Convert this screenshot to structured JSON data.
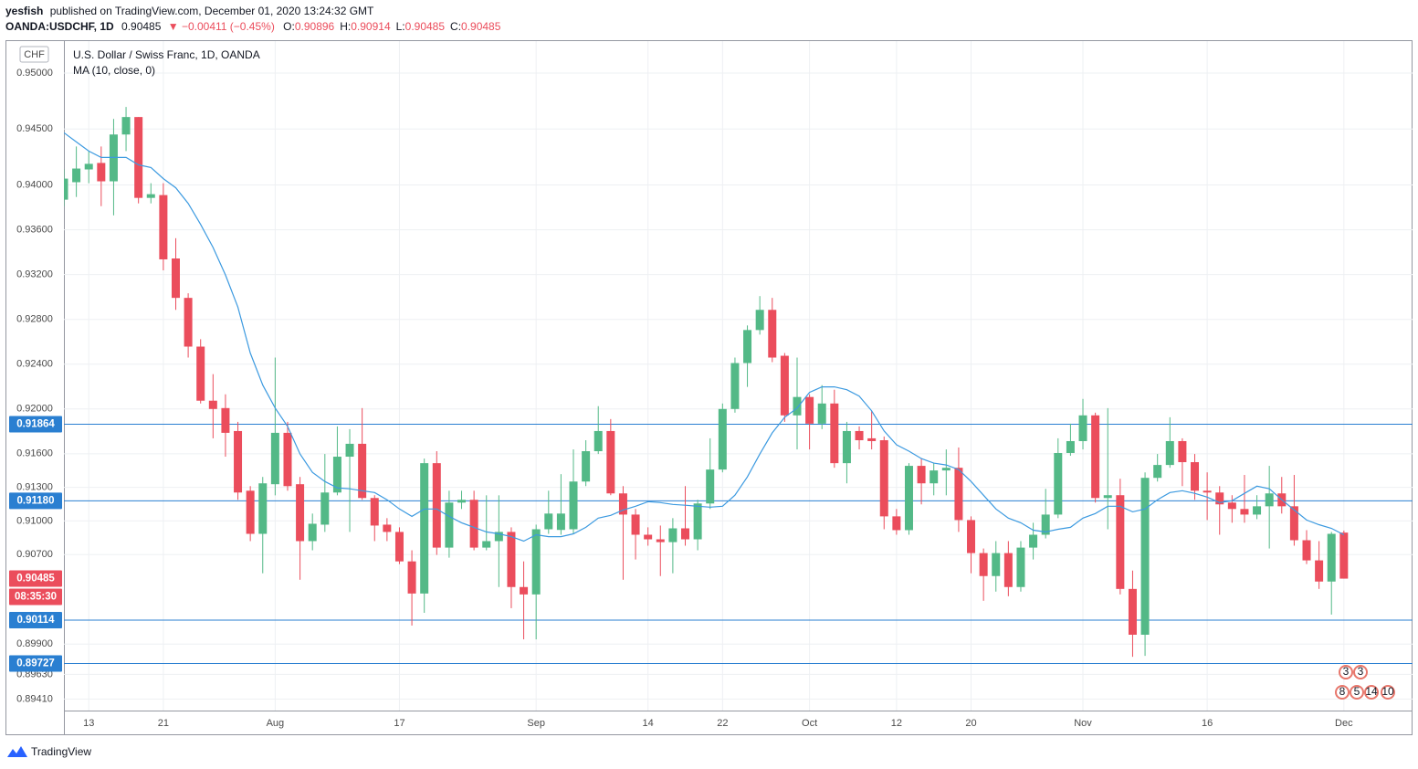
{
  "header": {
    "author": "yesfish",
    "published": "published on TradingView.com, December 01, 2020 13:24:32 GMT",
    "symbol": "OANDA:USDCHF, 1D",
    "price": "0.90485",
    "change": "▼ −0.00411 (−0.45%)",
    "ohlc": [
      {
        "label": "O:",
        "value": "0.90896"
      },
      {
        "label": "H:",
        "value": "0.90914"
      },
      {
        "label": "L:",
        "value": "0.90485"
      },
      {
        "label": "C:",
        "value": "0.90485"
      }
    ]
  },
  "footer": {
    "brand": "TradingView"
  },
  "chart_data": {
    "type": "candlestick",
    "title": "U.S. Dollar / Swiss Franc, 1D, OANDA",
    "currency": "CHF",
    "categories": [
      null,
      null,
      "13",
      null,
      null,
      null,
      null,
      null,
      "21",
      null,
      null,
      null,
      null,
      null,
      null,
      null,
      null,
      "Aug",
      null,
      null,
      null,
      null,
      null,
      null,
      null,
      null,
      null,
      "17",
      null,
      null,
      null,
      null,
      null,
      null,
      null,
      null,
      null,
      null,
      "Sep",
      null,
      null,
      null,
      null,
      null,
      null,
      null,
      null,
      "14",
      null,
      null,
      null,
      null,
      null,
      "22",
      null,
      null,
      null,
      null,
      null,
      null,
      "Oct",
      null,
      null,
      null,
      null,
      null,
      null,
      "12",
      null,
      null,
      null,
      null,
      null,
      "20",
      null,
      null,
      null,
      null,
      null,
      null,
      null,
      null,
      "Nov",
      null,
      null,
      null,
      null,
      null,
      null,
      null,
      null,
      null,
      "16",
      null,
      null,
      null,
      null,
      null,
      null,
      null,
      null,
      null,
      null,
      "Dec"
    ],
    "open": [
      0.93869,
      0.94025,
      0.94139,
      0.94197,
      0.94033,
      0.94451,
      0.94607,
      0.93885,
      0.9391,
      0.93344,
      0.92992,
      0.92557,
      0.92074,
      0.92008,
      0.91803,
      0.9127,
      0.90885,
      0.91328,
      0.91787,
      0.91328,
      0.9082,
      0.90967,
      0.91254,
      0.91574,
      0.91689,
      0.91205,
      0.90967,
      0.90902,
      0.90639,
      0.90352,
      0.91516,
      0.90762,
      0.91164,
      0.91189,
      0.90762,
      0.9082,
      0.90902,
      0.9041,
      0.90344,
      0.90926,
      0.9092,
      0.90926,
      0.91352,
      0.91623,
      0.91803,
      0.91246,
      0.91057,
      0.90877,
      0.90836,
      0.90811,
      0.90934,
      0.90836,
      0.91156,
      0.91459,
      0.92,
      0.9241,
      0.92705,
      0.92885,
      0.92475,
      0.91943,
      0.92107,
      0.91869,
      0.92049,
      0.91516,
      0.91803,
      0.91738,
      0.91721,
      0.91041,
      0.90918,
      0.91492,
      0.91336,
      0.91451,
      0.91475,
      0.91008,
      0.90713,
      0.90508,
      0.90713,
      0.9041,
      0.90762,
      0.90877,
      0.91057,
      0.91607,
      0.91713,
      0.91943,
      0.91205,
      0.9123,
      0.90393,
      0.89984,
      0.91385,
      0.915,
      0.91713,
      0.91525,
      0.9127,
      0.91254,
      0.91164,
      0.91107,
      0.91057,
      0.91131,
      0.91246,
      0.91131,
      0.90828,
      0.90648,
      0.90459,
      0.90896
    ],
    "high": [
      0.94139,
      0.94344,
      0.94303,
      0.94344,
      0.9459,
      0.94697,
      0.94607,
      0.94016,
      0.94016,
      0.93525,
      0.93033,
      0.92623,
      0.92311,
      0.92131,
      0.91885,
      0.91311,
      0.91393,
      0.92459,
      0.91885,
      0.91393,
      0.91066,
      0.91598,
      0.91844,
      0.9182,
      0.92008,
      0.9123,
      0.91025,
      0.90943,
      0.90738,
      0.91557,
      0.91623,
      0.9127,
      0.9127,
      0.9127,
      0.91229,
      0.91229,
      0.90943,
      0.90639,
      0.90967,
      0.9127,
      0.91418,
      0.91639,
      0.91721,
      0.92025,
      0.9191,
      0.91311,
      0.91107,
      0.90943,
      0.90959,
      0.91025,
      0.91311,
      0.91189,
      0.91738,
      0.92049,
      0.92459,
      0.92746,
      0.93008,
      0.92992,
      0.925,
      0.92459,
      0.92131,
      0.92213,
      0.92172,
      0.91885,
      0.91844,
      0.91984,
      0.91754,
      0.91107,
      0.91516,
      0.91557,
      0.91516,
      0.91639,
      0.91656,
      0.91041,
      0.90754,
      0.9082,
      0.9082,
      0.9082,
      0.90984,
      0.91287,
      0.91738,
      0.91869,
      0.9209,
      0.91967,
      0.92008,
      0.91377,
      0.90557,
      0.91434,
      0.91598,
      0.91926,
      0.91738,
      0.91598,
      0.91434,
      0.91311,
      0.9123,
      0.91411,
      0.9123,
      0.91492,
      0.91393,
      0.91411,
      0.90918,
      0.9082,
      0.90902,
      0.90914
    ],
    "low": [
      0.93811,
      0.93893,
      0.94016,
      0.93811,
      0.93729,
      0.94303,
      0.93836,
      0.93836,
      0.93238,
      0.92885,
      0.92459,
      0.92049,
      0.91738,
      0.91574,
      0.91189,
      0.9082,
      0.90533,
      0.91229,
      0.9127,
      0.90475,
      0.90738,
      0.90902,
      0.91229,
      0.90902,
      0.91189,
      0.9082,
      0.9082,
      0.90615,
      0.90066,
      0.9018,
      0.90697,
      0.90672,
      0.91107,
      0.90738,
      0.90738,
      0.9041,
      0.90221,
      0.89943,
      0.89943,
      0.90885,
      0.90877,
      0.90885,
      0.91311,
      0.91598,
      0.9123,
      0.90475,
      0.90656,
      0.90779,
      0.90508,
      0.90533,
      0.90779,
      0.90738,
      0.91107,
      0.91434,
      0.91967,
      0.92197,
      0.92664,
      0.92418,
      0.91885,
      0.91639,
      0.91639,
      0.9182,
      0.91475,
      0.91336,
      0.91639,
      0.91639,
      0.90926,
      0.90877,
      0.90877,
      0.91148,
      0.91229,
      0.91229,
      0.90902,
      0.90533,
      0.90287,
      0.90369,
      0.90328,
      0.90369,
      0.90656,
      0.90844,
      0.91025,
      0.91582,
      0.91639,
      0.91164,
      0.90926,
      0.90344,
      0.89787,
      0.89795,
      0.91352,
      0.91475,
      0.91311,
      0.91189,
      0.91008,
      0.90877,
      0.90984,
      0.90984,
      0.91016,
      0.90754,
      0.91066,
      0.90779,
      0.90615,
      0.90393,
      0.90164,
      0.90485
    ],
    "close": [
      0.94057,
      0.94147,
      0.94189,
      0.94033,
      0.94451,
      0.94607,
      0.93885,
      0.93918,
      0.93336,
      0.92992,
      0.92557,
      0.92074,
      0.92,
      0.91787,
      0.91254,
      0.90885,
      0.91336,
      0.91787,
      0.91311,
      0.9082,
      0.90975,
      0.91254,
      0.91574,
      0.91689,
      0.91205,
      0.90959,
      0.90902,
      0.90639,
      0.90352,
      0.91516,
      0.90762,
      0.91164,
      0.91189,
      0.90762,
      0.9082,
      0.90902,
      0.9041,
      0.90344,
      0.90926,
      0.91066,
      0.91066,
      0.91352,
      0.91623,
      0.91803,
      0.91246,
      0.91057,
      0.90877,
      0.90836,
      0.90811,
      0.90934,
      0.90836,
      0.91156,
      0.91459,
      0.92,
      0.9241,
      0.92705,
      0.92885,
      0.92459,
      0.91943,
      0.92107,
      0.91869,
      0.92049,
      0.91516,
      0.91803,
      0.91721,
      0.91713,
      0.91041,
      0.90918,
      0.91492,
      0.91336,
      0.91451,
      0.91475,
      0.91008,
      0.90713,
      0.90508,
      0.90713,
      0.9041,
      0.90762,
      0.90877,
      0.91057,
      0.91607,
      0.91713,
      0.91943,
      0.91205,
      0.9123,
      0.90393,
      0.89984,
      0.91385,
      0.915,
      0.91713,
      0.91525,
      0.9127,
      0.91254,
      0.91148,
      0.91107,
      0.91057,
      0.91131,
      0.91246,
      0.91131,
      0.90828,
      0.90648,
      0.90459,
      0.90885,
      0.90485
    ],
    "up_color": "#53b987",
    "down_color": "#eb4d5c",
    "series": [
      {
        "name": "MA (10, close, 0)",
        "color": "#3c9ae0",
        "values": [
          0.94467,
          0.94385,
          0.94303,
          0.94246,
          0.94246,
          0.94246,
          0.9418,
          0.94156,
          0.94057,
          0.93975,
          0.93836,
          0.93648,
          0.93443,
          0.93197,
          0.9291,
          0.925,
          0.92213,
          0.92008,
          0.91844,
          0.91598,
          0.91434,
          0.91352,
          0.91295,
          0.91287,
          0.9127,
          0.91254,
          0.91189,
          0.91107,
          0.91041,
          0.91107,
          0.91107,
          0.91041,
          0.90984,
          0.90943,
          0.90902,
          0.90885,
          0.9086,
          0.9082,
          0.90877,
          0.9086,
          0.9086,
          0.90885,
          0.90943,
          0.91025,
          0.9105,
          0.91098,
          0.91131,
          0.91172,
          0.91164,
          0.91148,
          0.9114,
          0.91131,
          0.91123,
          0.91131,
          0.9123,
          0.91393,
          0.91598,
          0.91787,
          0.91926,
          0.92008,
          0.92148,
          0.92197,
          0.92197,
          0.92172,
          0.92115,
          0.91984,
          0.91803,
          0.9168,
          0.91623,
          0.91557,
          0.91516,
          0.915,
          0.91459,
          0.91352,
          0.9123,
          0.91107,
          0.91025,
          0.90984,
          0.90918,
          0.90902,
          0.90926,
          0.90943,
          0.91025,
          0.91066,
          0.91131,
          0.91131,
          0.91082,
          0.91107,
          0.91189,
          0.91254,
          0.9127,
          0.91246,
          0.91213,
          0.91164,
          0.9118,
          0.91246,
          0.91311,
          0.91287,
          0.91189,
          0.91098,
          0.91008,
          0.90967,
          0.90934,
          0.90877
        ]
      }
    ],
    "ylim": [
      0.89307,
      0.95285
    ],
    "yticks": [
      {
        "value": 0.95,
        "label": "0.95000"
      },
      {
        "value": 0.945,
        "label": "0.94500"
      },
      {
        "value": 0.94,
        "label": "0.94000"
      },
      {
        "value": 0.936,
        "label": "0.93600"
      },
      {
        "value": 0.932,
        "label": "0.93200"
      },
      {
        "value": 0.928,
        "label": "0.92800"
      },
      {
        "value": 0.924,
        "label": "0.92400"
      },
      {
        "value": 0.92,
        "label": "0.92000"
      },
      {
        "value": 0.916,
        "label": "0.91600"
      },
      {
        "value": 0.913,
        "label": "0.91300"
      },
      {
        "value": 0.91,
        "label": "0.91000"
      },
      {
        "value": 0.907,
        "label": "0.90700"
      },
      {
        "value": 0.899,
        "label": "0.89900"
      },
      {
        "value": 0.8963,
        "label": "0.89630"
      },
      {
        "value": 0.8941,
        "label": "0.89410"
      }
    ],
    "grid": true,
    "hlines": [
      0.91864,
      {
        "value": 0.9118,
        "label": "0.91180"
      },
      0.90114,
      0.89727
    ],
    "hline_color": "#2a7fd1",
    "countdown": "08:35:30",
    "events": [
      "3",
      "3",
      "8",
      "5",
      "14",
      "10"
    ]
  }
}
